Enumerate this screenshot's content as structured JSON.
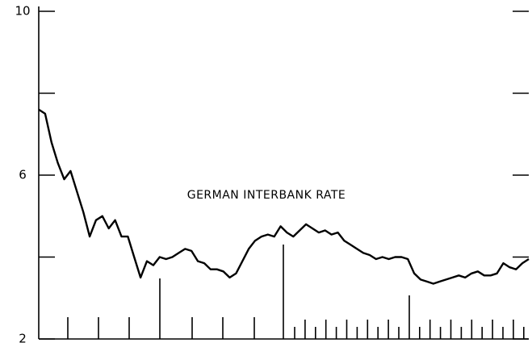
{
  "chart_data": {
    "type": "line",
    "annotation": "GERMAN INTERBANK RATE",
    "ylim": [
      2,
      10
    ],
    "yticks": [
      2,
      6,
      10
    ],
    "minor_yticks": [
      4,
      8
    ],
    "color": "#000000",
    "values": [
      7.6,
      7.5,
      6.8,
      6.3,
      5.9,
      6.1,
      5.6,
      5.1,
      4.5,
      4.9,
      5.0,
      4.7,
      4.9,
      4.5,
      4.5,
      4.0,
      3.5,
      3.9,
      3.8,
      4.0,
      3.95,
      4.0,
      4.1,
      4.2,
      4.15,
      3.9,
      3.85,
      3.7,
      3.7,
      3.65,
      3.5,
      3.6,
      3.9,
      4.2,
      4.4,
      4.5,
      4.55,
      4.5,
      4.75,
      4.6,
      4.5,
      4.65,
      4.8,
      4.7,
      4.6,
      4.65,
      4.55,
      4.6,
      4.4,
      4.3,
      4.2,
      4.1,
      4.05,
      3.95,
      4.0,
      3.95,
      4.0,
      4.0,
      3.95,
      3.6,
      3.45,
      3.4,
      3.35,
      3.4,
      3.45,
      3.5,
      3.55,
      3.5,
      3.6,
      3.65,
      3.55,
      3.55,
      3.6,
      3.85,
      3.75,
      3.7,
      3.85,
      3.95
    ]
  }
}
